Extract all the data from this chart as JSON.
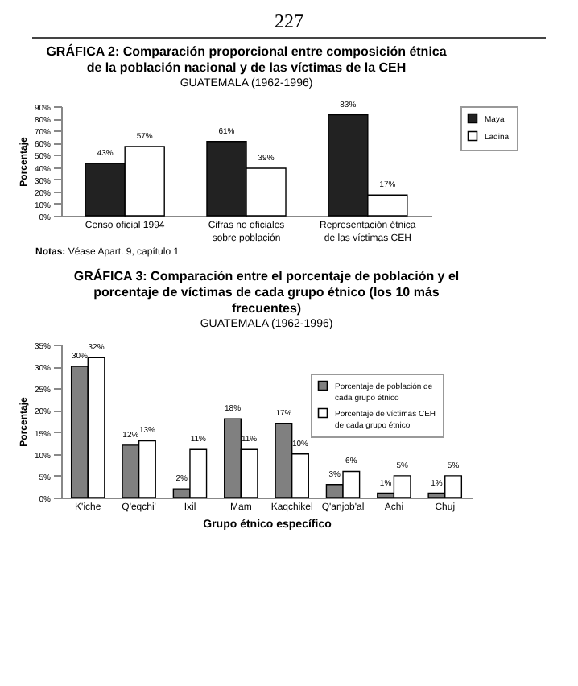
{
  "chart_data": [
    {
      "type": "bar",
      "title": "GRÁFICA 2: Comparación proporcional entre composición étnica de la población nacional y de las víctimas de la CEH",
      "subtitle": "GUATEMALA (1962-1996)",
      "ylabel": "Porcentaje",
      "categories": [
        "Censo oficial 1994",
        "Cifras no oficiales sobre población",
        "Representación étnica de las víctimas CEH"
      ],
      "series": [
        {
          "name": "Maya",
          "color": "#222222",
          "values": [
            43,
            61,
            83
          ],
          "value_labels": [
            "43%",
            "61%",
            "83%"
          ]
        },
        {
          "name": "Ladina",
          "color": "#ffffff",
          "values": [
            57,
            39,
            17
          ],
          "value_labels": [
            "57%",
            "39%",
            "17%"
          ]
        }
      ],
      "ylim": [
        0,
        90
      ],
      "yticks": [
        {
          "value": 0,
          "label": "0%"
        },
        {
          "value": 10,
          "label": "10%"
        },
        {
          "value": 20,
          "label": "20%"
        },
        {
          "value": 30,
          "label": "30%"
        },
        {
          "value": 40,
          "label": "40%"
        },
        {
          "value": 50,
          "label": "50%"
        },
        {
          "value": 60,
          "label": "60%"
        },
        {
          "value": 70,
          "label": "70%"
        },
        {
          "value": 80,
          "label": "80%"
        },
        {
          "value": 90,
          "label": "90%"
        }
      ],
      "legend": "top right",
      "annotations": [
        "227",
        "Notas: Véase Apart. 9, capítulo 1"
      ]
    },
    {
      "type": "bar",
      "title": "GRÁFICA 3: Comparación entre el porcentaje de población y el porcentaje de víctimas de cada grupo étnico (los 10 más frecuentes)",
      "subtitle": "GUATEMALA (1962-1996)",
      "xlabel": "Grupo étnico específico",
      "ylabel": "Porcentaje",
      "categories": [
        "K'iche",
        "Q'eqchi'",
        "Ixil",
        "Mam",
        "Kaqchikel",
        "Q'anjob'al",
        "Achi",
        "Chuj"
      ],
      "series": [
        {
          "name": "Porcentaje de población de cada grupo étnico",
          "color": "#808080",
          "values": [
            30,
            12,
            2,
            18,
            17,
            3,
            1,
            1
          ],
          "value_labels": [
            "30%",
            "12%",
            "2%",
            "18%",
            "17%",
            "3%",
            "1%",
            "1%"
          ]
        },
        {
          "name": "Porcentaje de víctimas CEH de cada grupo étnico",
          "color": "#ffffff",
          "values": [
            32,
            13,
            11,
            11,
            10,
            6,
            5,
            5
          ],
          "value_labels": [
            "32%",
            "13%",
            "11%",
            "11%",
            "10%",
            "6%",
            "5%",
            "5%"
          ]
        }
      ],
      "ylim": [
        0,
        35
      ],
      "yticks": [
        {
          "value": 0,
          "label": "0%"
        },
        {
          "value": 5,
          "label": "5%"
        },
        {
          "value": 10,
          "label": "10%"
        },
        {
          "value": 15,
          "label": "15%"
        },
        {
          "value": 20,
          "label": "20%"
        },
        {
          "value": 25,
          "label": "25%"
        },
        {
          "value": 30,
          "label": "30%"
        },
        {
          "value": 35,
          "label": "35%"
        }
      ],
      "legend": "top right"
    }
  ]
}
